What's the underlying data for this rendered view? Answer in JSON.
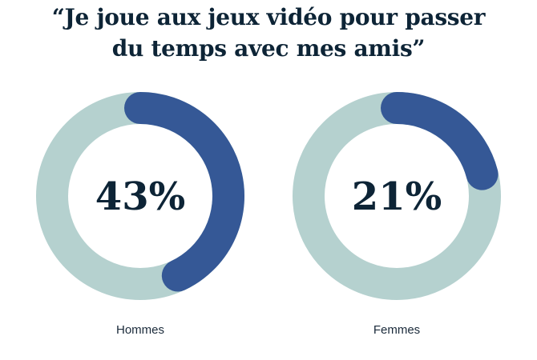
{
  "title": {
    "line1": "“Je joue aux jeux vidéo pour passer",
    "line2": "du temps avec mes amis”"
  },
  "colors": {
    "track": "#b5d1cf",
    "value": "#355896",
    "text": "#0d2436"
  },
  "chart_data": [
    {
      "type": "pie",
      "subtype": "donut",
      "category": "Hommes",
      "value": 43,
      "label": "43%"
    },
    {
      "type": "pie",
      "subtype": "donut",
      "category": "Femmes",
      "value": 21,
      "label": "21%"
    }
  ]
}
